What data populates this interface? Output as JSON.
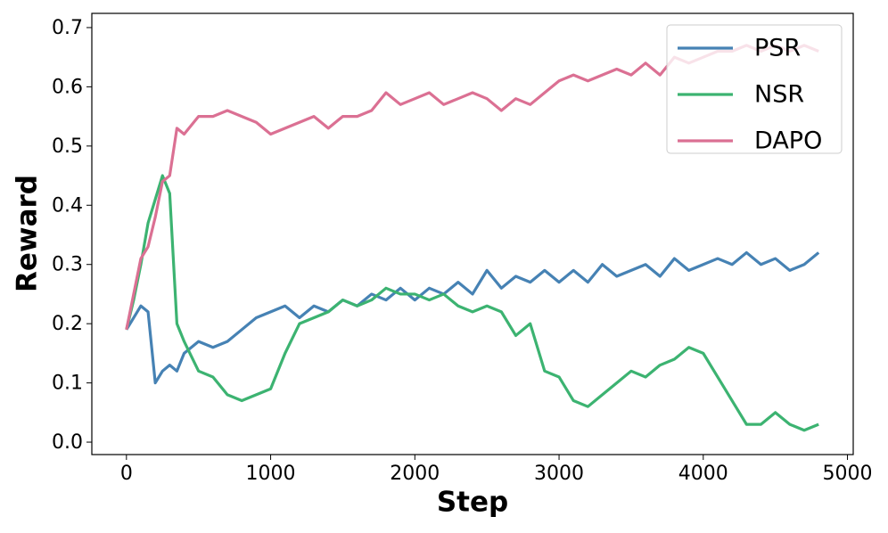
{
  "chart_data": {
    "type": "line",
    "x_label": "Step",
    "y_label": "Reward",
    "x": [
      0,
      50,
      100,
      150,
      200,
      250,
      300,
      350,
      400,
      500,
      600,
      700,
      800,
      900,
      1000,
      1100,
      1200,
      1300,
      1400,
      1500,
      1600,
      1700,
      1800,
      1900,
      2000,
      2100,
      2200,
      2300,
      2400,
      2500,
      2600,
      2700,
      2800,
      2900,
      3000,
      3100,
      3200,
      3300,
      3400,
      3500,
      3600,
      3700,
      3800,
      3900,
      4000,
      4100,
      4200,
      4300,
      4400,
      4500,
      4600,
      4700,
      4800
    ],
    "series": [
      {
        "name": "PSR",
        "color": "#4682b4",
        "values": [
          0.19,
          0.21,
          0.23,
          0.22,
          0.1,
          0.12,
          0.13,
          0.12,
          0.15,
          0.17,
          0.16,
          0.17,
          0.19,
          0.21,
          0.22,
          0.23,
          0.21,
          0.23,
          0.22,
          0.24,
          0.23,
          0.25,
          0.24,
          0.26,
          0.24,
          0.26,
          0.25,
          0.27,
          0.25,
          0.29,
          0.26,
          0.28,
          0.27,
          0.29,
          0.27,
          0.29,
          0.27,
          0.3,
          0.28,
          0.29,
          0.3,
          0.28,
          0.31,
          0.29,
          0.3,
          0.31,
          0.3,
          0.32,
          0.3,
          0.31,
          0.29,
          0.3,
          0.32
        ]
      },
      {
        "name": "NSR",
        "color": "#3cb371",
        "values": [
          0.19,
          0.24,
          0.3,
          0.37,
          0.41,
          0.45,
          0.42,
          0.2,
          0.17,
          0.12,
          0.11,
          0.08,
          0.07,
          0.08,
          0.09,
          0.15,
          0.2,
          0.21,
          0.22,
          0.24,
          0.23,
          0.24,
          0.26,
          0.25,
          0.25,
          0.24,
          0.25,
          0.23,
          0.22,
          0.23,
          0.22,
          0.18,
          0.2,
          0.12,
          0.11,
          0.07,
          0.06,
          0.08,
          0.1,
          0.12,
          0.11,
          0.13,
          0.14,
          0.16,
          0.15,
          0.11,
          0.07,
          0.03,
          0.03,
          0.05,
          0.03,
          0.02,
          0.03
        ]
      },
      {
        "name": "DAPO",
        "color": "#db7093",
        "values": [
          0.19,
          0.25,
          0.31,
          0.33,
          0.38,
          0.44,
          0.45,
          0.53,
          0.52,
          0.55,
          0.55,
          0.56,
          0.55,
          0.54,
          0.52,
          0.53,
          0.54,
          0.55,
          0.53,
          0.55,
          0.55,
          0.56,
          0.59,
          0.57,
          0.58,
          0.59,
          0.57,
          0.58,
          0.59,
          0.58,
          0.56,
          0.58,
          0.57,
          0.59,
          0.61,
          0.62,
          0.61,
          0.62,
          0.63,
          0.62,
          0.64,
          0.62,
          0.65,
          0.64,
          0.65,
          0.66,
          0.66,
          0.67,
          0.66,
          0.67,
          0.66,
          0.67,
          0.66
        ]
      }
    ],
    "xlim": [
      -240,
      5040
    ],
    "xticks": [
      0,
      1000,
      2000,
      3000,
      4000,
      5000
    ],
    "ylim": [
      -0.021,
      0.724
    ],
    "yticks": [
      {
        "value": 0,
        "label": "0.0"
      },
      0.1,
      0.2,
      0.3,
      0.4,
      0.5,
      0.6,
      0.7
    ],
    "grid": false,
    "legend": "upper right"
  }
}
